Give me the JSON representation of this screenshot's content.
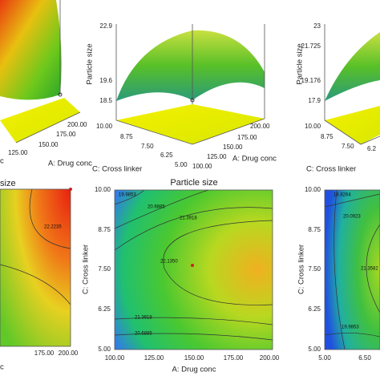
{
  "top_left": {
    "x_ticks": [
      "125.00",
      "150.00",
      "175.00",
      "200.00"
    ],
    "x_label": "A: Drug conc",
    "cut_label": "c"
  },
  "top_middle": {
    "y_label": "Particle size",
    "y_ticks": [
      "22.9",
      "19.6",
      "18.5"
    ],
    "c_ticks": [
      "10.00",
      "8.75",
      "7.50",
      "6.25",
      "5.00"
    ],
    "c_label": "C: Cross linker",
    "a_ticks": [
      "100.00",
      "125.00",
      "150.00",
      "175.00",
      "200.00"
    ],
    "a_label": "A: Drug conc"
  },
  "top_right": {
    "y_label": "Particle size",
    "y_ticks": [
      "23",
      "21.725",
      "19.176",
      "17.9"
    ],
    "c_ticks": [
      "10.00",
      "8.75",
      "7.50",
      "6.2"
    ],
    "c_label": "C: Cross linker"
  },
  "bottom_left": {
    "title": "size",
    "contour_labels": [
      "22.2235"
    ],
    "x_ticks": [
      "175.00",
      "200.00"
    ],
    "cut_label": "c"
  },
  "bottom_middle": {
    "title": "Particle size",
    "contour_labels": [
      "19.9853",
      "20.6885",
      "21.3918",
      "22.1350",
      "21.3918",
      "20.6885"
    ],
    "y_ticks": [
      "10.00",
      "8.75",
      "7.50",
      "6.25",
      "5.00"
    ],
    "y_label": "C: Cross linker",
    "x_ticks": [
      "100.00",
      "125.00",
      "150.00",
      "175.00",
      "200.00"
    ],
    "x_label": "A: Drug conc"
  },
  "bottom_right": {
    "contour_labels": [
      "18.8264",
      "20.0923",
      "21.3582",
      "19.9853"
    ],
    "y_ticks": [
      "10.00",
      "8.75",
      "7.50",
      "6.25",
      "5.00"
    ],
    "y_label": "C: Cross linker",
    "x_ticks": [
      "5.00",
      "6.50"
    ]
  }
}
